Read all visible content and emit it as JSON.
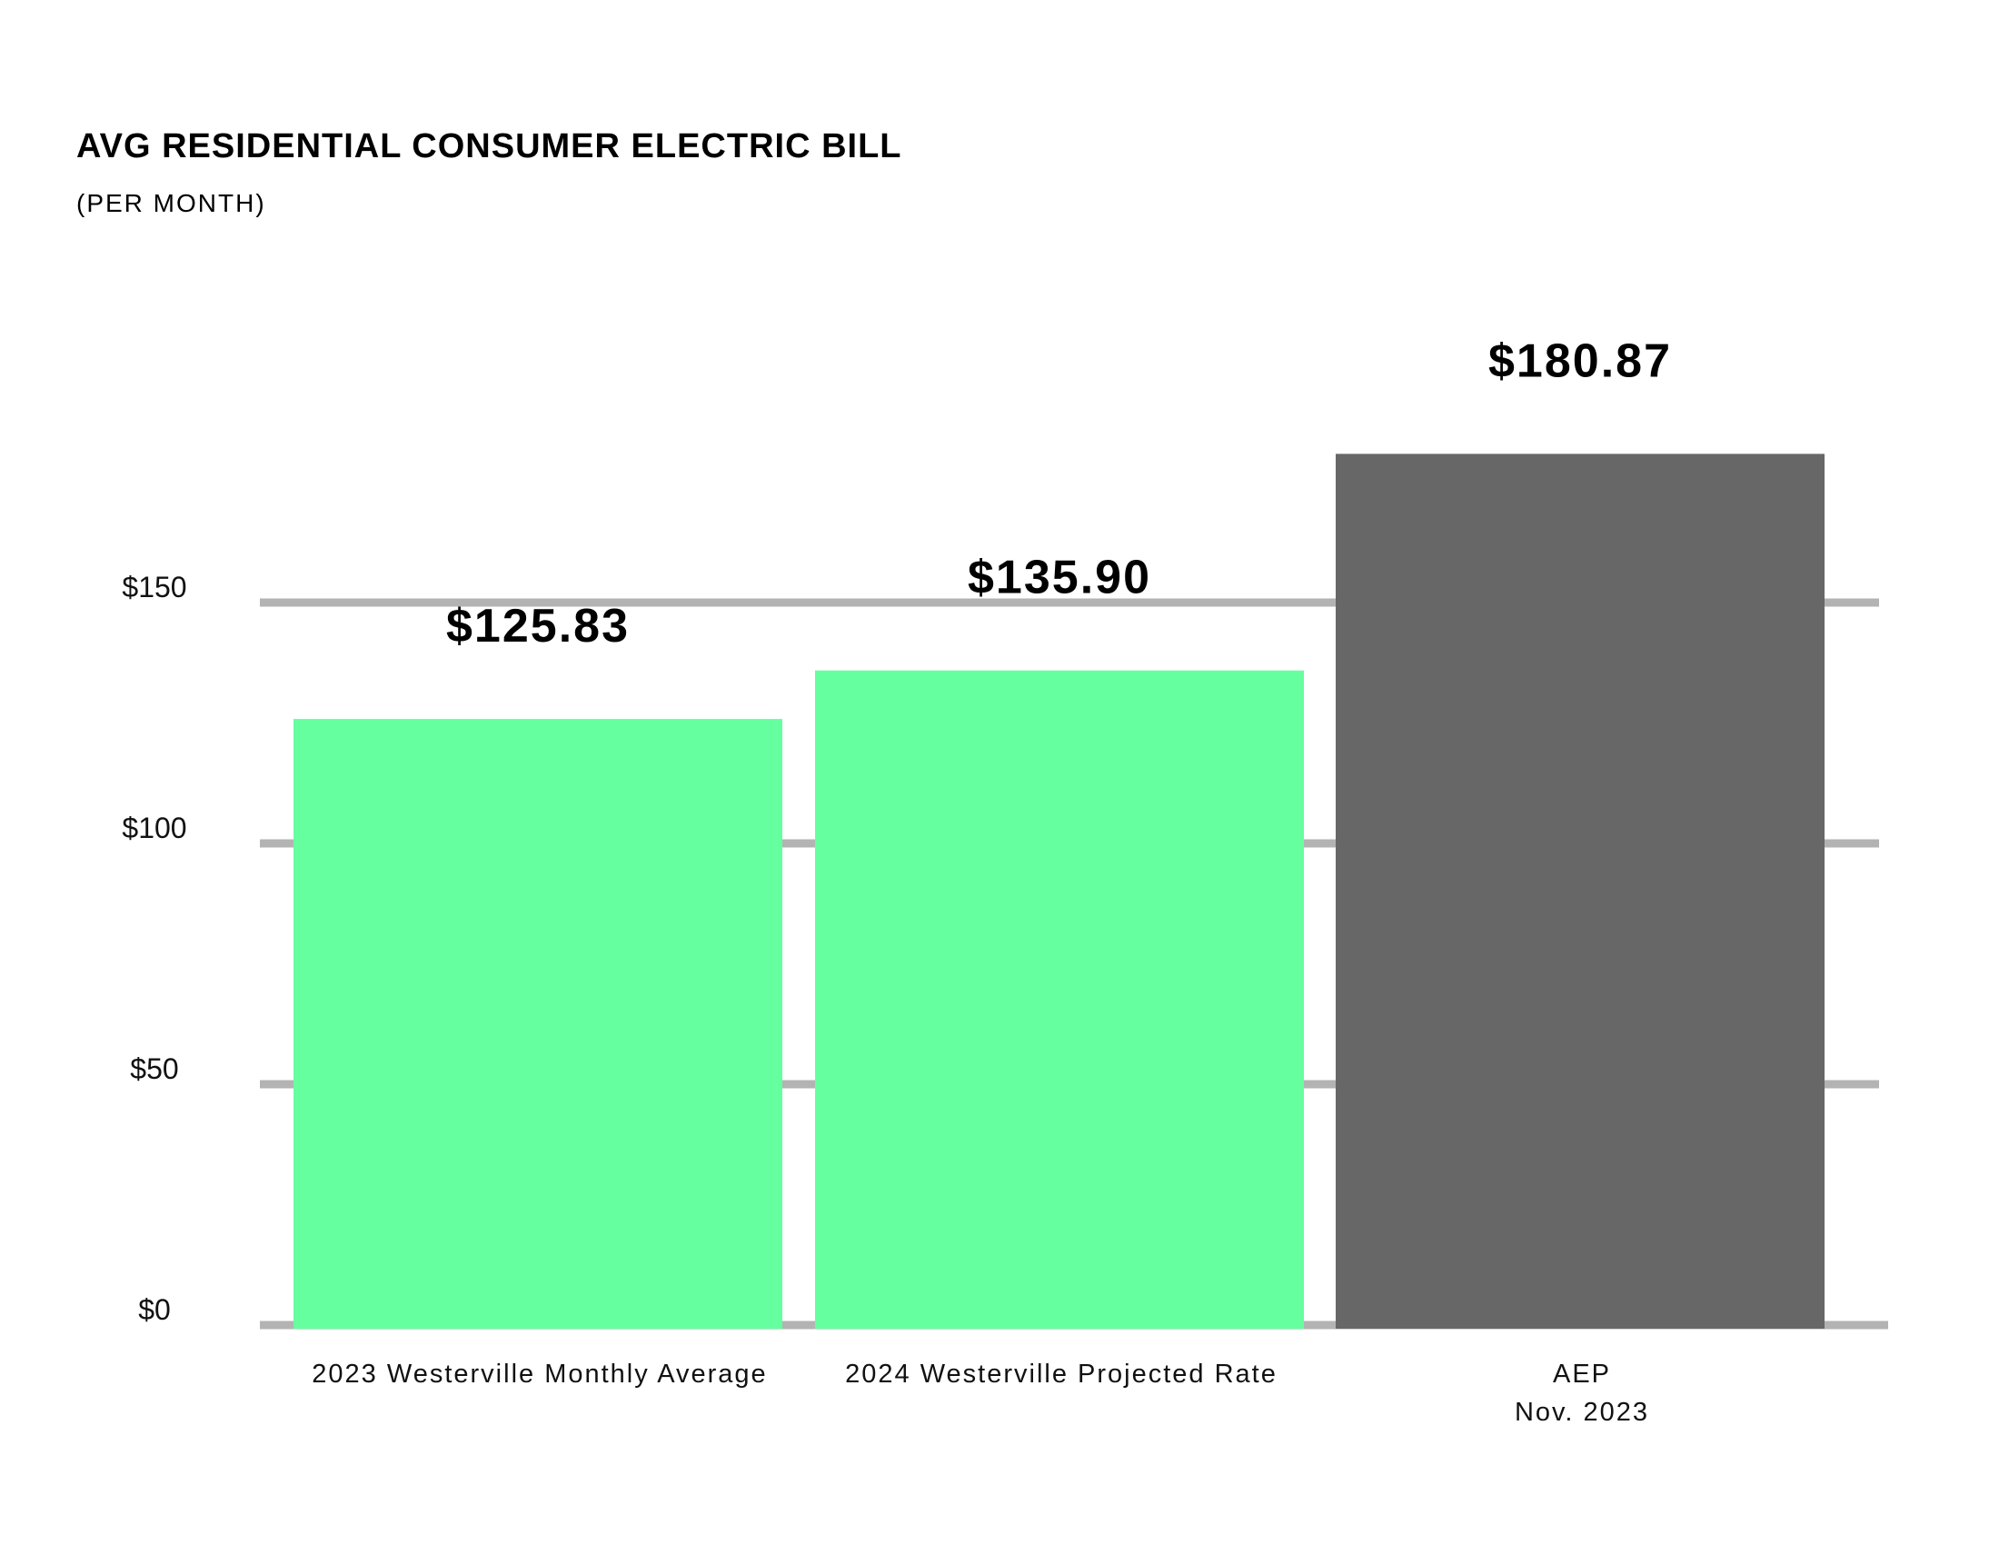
{
  "chart_data": {
    "type": "bar",
    "title": "AVG RESIDENTIAL CONSUMER ELECTRIC BILL",
    "subtitle": "(PER MONTH)",
    "categories": [
      [
        "2023 Westerville Monthly Average"
      ],
      [
        "2024 Westerville Projected Rate"
      ],
      [
        "AEP",
        "Nov. 2023"
      ]
    ],
    "values": [
      125.83,
      135.9,
      180.87
    ],
    "data_labels": [
      "$125.83",
      "$135.90",
      "$180.87"
    ],
    "bar_colors": [
      "#66ff9f",
      "#66ff9f",
      "#676767"
    ],
    "yticks": [
      0,
      50,
      100,
      150
    ],
    "ytick_labels": [
      "$0",
      "$50",
      "$100",
      "$150"
    ],
    "ylim": [
      0,
      150
    ],
    "grid": true,
    "grid_color": "#b3b3b3",
    "xlabel": "",
    "ylabel": ""
  }
}
